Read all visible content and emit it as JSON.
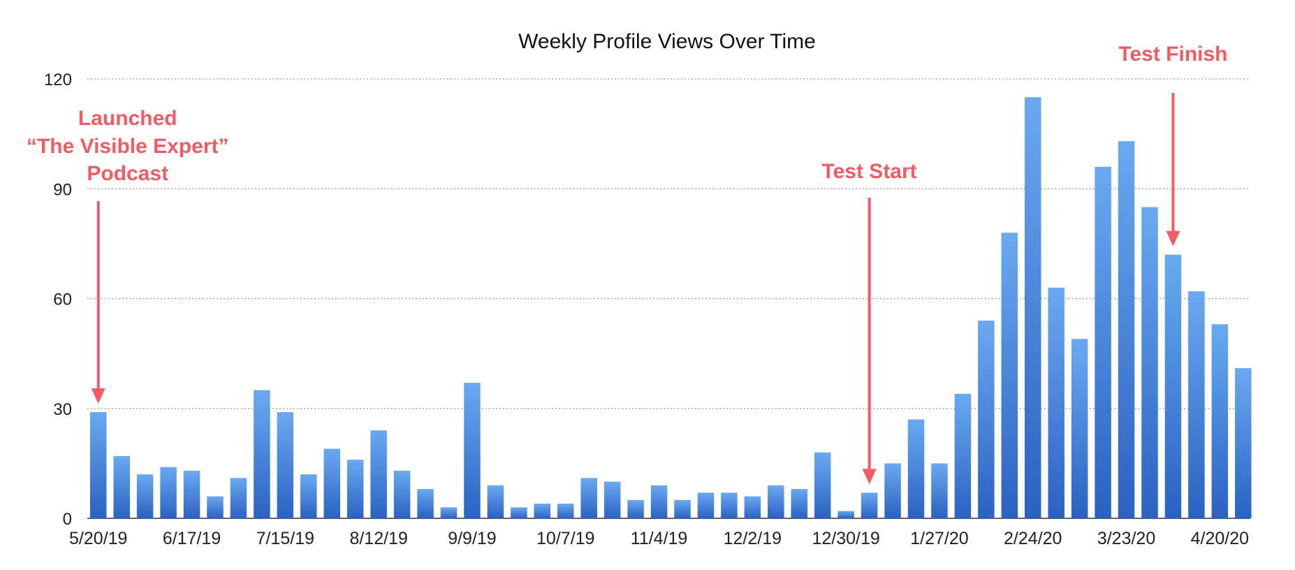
{
  "chart_data": {
    "type": "bar",
    "title": "Weekly Profile Views Over Time",
    "xlabel": "",
    "ylabel": "",
    "ylim": [
      0,
      120
    ],
    "yticks": [
      0,
      30,
      60,
      90,
      120
    ],
    "grid": true,
    "x_tick_labels": [
      "5/20/19",
      "6/17/19",
      "7/15/19",
      "8/12/19",
      "9/9/19",
      "10/7/19",
      "11/4/19",
      "12/2/19",
      "12/30/19",
      "1/27/20",
      "2/24/20",
      "3/23/20",
      "4/20/20"
    ],
    "x_tick_every": 4,
    "values": [
      29,
      17,
      12,
      14,
      13,
      6,
      11,
      35,
      29,
      12,
      19,
      16,
      24,
      13,
      8,
      3,
      37,
      9,
      3,
      4,
      4,
      11,
      10,
      5,
      9,
      5,
      7,
      7,
      6,
      9,
      8,
      18,
      2,
      7,
      15,
      27,
      15,
      34,
      54,
      78,
      115,
      63,
      49,
      96,
      103,
      85,
      72,
      62,
      53,
      41
    ],
    "bar_color_top": "#6aa9f1",
    "bar_color_bottom": "#2a62c2",
    "annotations": [
      {
        "lines": [
          "Launched",
          "“The Visible Expert”",
          "Podcast"
        ],
        "bar_index": 0,
        "color": "#f35b63"
      },
      {
        "lines": [
          "Test Start"
        ],
        "bar_index": 33,
        "color": "#f35b63"
      },
      {
        "lines": [
          "Test Finish"
        ],
        "bar_index": 46,
        "color": "#f35b63"
      }
    ]
  }
}
